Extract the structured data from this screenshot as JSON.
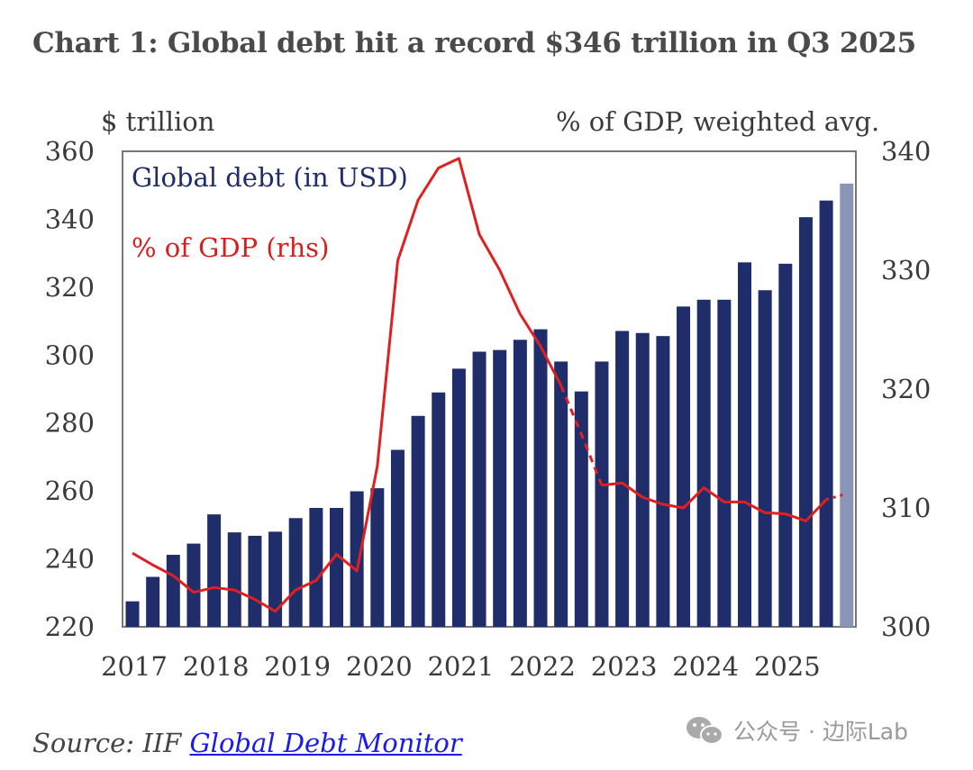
{
  "title": "Chart 1: Global debt hit a record $346 trillion in Q3 2025",
  "left_unit": "$ trillion",
  "right_unit": "% of GDP, weighted avg.",
  "source_prefix": "Source: IIF ",
  "source_link": "Global Debt Monitor",
  "watermark": "公众号 · 边际Lab",
  "colors": {
    "bars": "#1f2d6b",
    "last_bar": "#8a96b8",
    "line": "#e02020",
    "legend_debt": "#1f2d6b",
    "legend_gdp": "#d42020"
  },
  "chart_data": {
    "type": "bar+line",
    "title": "Chart 1: Global debt hit a record $346 trillion in Q3 2025",
    "legend_placement": "top-left",
    "grid": false,
    "left_axis": {
      "label": "$ trillion",
      "range": [
        220,
        360
      ],
      "ticks": [
        220,
        240,
        260,
        280,
        300,
        320,
        340,
        360
      ]
    },
    "right_axis": {
      "label": "% of GDP, weighted avg.",
      "range": [
        300,
        340
      ],
      "ticks": [
        300,
        310,
        320,
        330,
        340
      ]
    },
    "x_tick_labels": [
      "2017",
      "2018",
      "2019",
      "2020",
      "2021",
      "2022",
      "2023",
      "2024",
      "2025"
    ],
    "quarters": [
      "2017Q1",
      "2017Q2",
      "2017Q3",
      "2017Q4",
      "2018Q1",
      "2018Q2",
      "2018Q3",
      "2018Q4",
      "2019Q1",
      "2019Q2",
      "2019Q3",
      "2019Q4",
      "2020Q1",
      "2020Q2",
      "2020Q3",
      "2020Q4",
      "2021Q1",
      "2021Q2",
      "2021Q3",
      "2021Q4",
      "2022Q1",
      "2022Q2",
      "2022Q3",
      "2022Q4",
      "2023Q1",
      "2023Q2",
      "2023Q3",
      "2023Q4",
      "2024Q1",
      "2024Q2",
      "2024Q3",
      "2024Q4",
      "2025Q1",
      "2025Q2",
      "2025Q3",
      "2025Q4"
    ],
    "series": [
      {
        "name": "Global debt (in USD)",
        "axis": "left",
        "type": "bar",
        "values": [
          227.5,
          234.7,
          241.2,
          244.5,
          253.1,
          247.8,
          246.8,
          248.0,
          252.0,
          255.0,
          255.0,
          259.9,
          260.8,
          272.1,
          282.1,
          289,
          296,
          301.0,
          301.5,
          304.5,
          307.6,
          298.1,
          289.3,
          298.1,
          307.1,
          306.5,
          305.6,
          314.3,
          316.3,
          316.3,
          327.3,
          319.1,
          326.9,
          340.6,
          345.5,
          350.5
        ],
        "last_bar_lighter": true
      },
      {
        "name": "% of GDP (rhs)",
        "axis": "right",
        "type": "line",
        "values": [
          306.2,
          305.2,
          304.3,
          302.9,
          303.3,
          303.1,
          302.3,
          301.3,
          303.1,
          303.9,
          306.1,
          304.7,
          313.5,
          330.8,
          335.9,
          338.6,
          339.4,
          333.0,
          330.0,
          326.3,
          323.6,
          320.3,
          316.2,
          311.9,
          312.1,
          310.9,
          310.3,
          310.0,
          311.7,
          310.5,
          310.5,
          309.6,
          309.5,
          308.9,
          310.7,
          311.2
        ],
        "dashed_segment": [
          "2022Q2",
          "2022Q4"
        ],
        "dotted_segment": [
          "2025Q3",
          "2025Q4"
        ]
      }
    ]
  }
}
